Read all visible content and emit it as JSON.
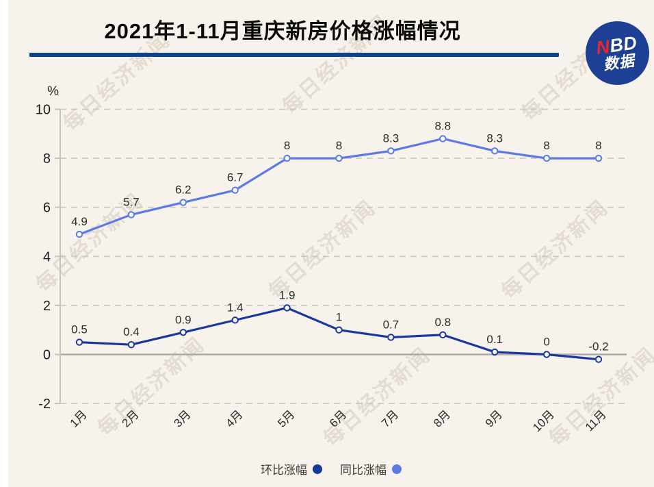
{
  "header": {
    "title": "2021年1-11月重庆新房价格涨幅情况",
    "underline_color": "#0d4195",
    "logo": {
      "top_red": "N",
      "top_rest": "BD",
      "bottom": "数据",
      "circle_color": "#1d3f94",
      "red_color": "#e8262c"
    }
  },
  "watermark": {
    "text": "每日经济新闻"
  },
  "chart_data": {
    "type": "line",
    "title": "2021年1-11月重庆新房价格涨幅情况",
    "unit_label": "%",
    "categories": [
      "1月",
      "2月",
      "3月",
      "4月",
      "5月",
      "6月",
      "7月",
      "8月",
      "9月",
      "10月",
      "11月"
    ],
    "series": [
      {
        "name": "环比涨幅",
        "color": "#19379f",
        "values": [
          0.5,
          0.4,
          0.9,
          1.4,
          1.9,
          1,
          0.7,
          0.8,
          0.1,
          0,
          -0.2
        ]
      },
      {
        "name": "同比涨幅",
        "color": "#5b7ae6",
        "values": [
          4.9,
          5.7,
          6.2,
          6.7,
          8,
          8,
          8.3,
          8.8,
          8.3,
          8,
          8
        ]
      }
    ],
    "y_ticks": [
      10,
      8,
      6,
      4,
      2,
      0,
      -2
    ],
    "ylim": [
      -2,
      10
    ],
    "grid": "horizontal dashed, solid zero line",
    "legend_position": "bottom",
    "x_label_rotation": -45,
    "marker": "open circle"
  }
}
